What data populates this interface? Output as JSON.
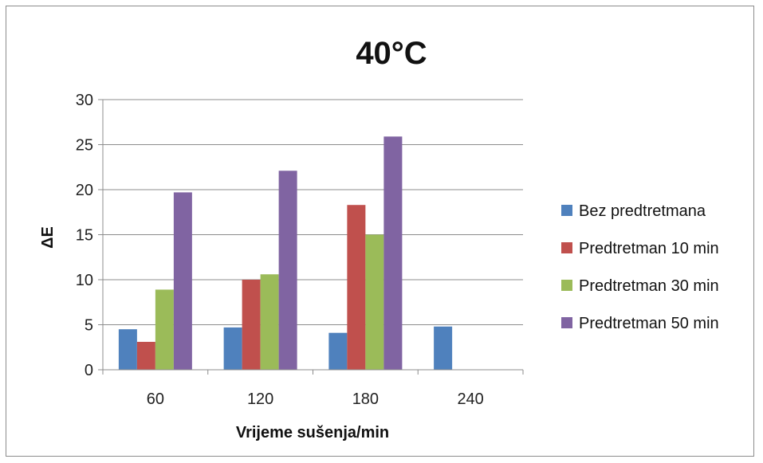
{
  "chart_data": {
    "type": "bar",
    "title": "40°C",
    "xlabel": "Vrijeme sušenja/min",
    "ylabel": "ΔE",
    "categories": [
      "60",
      "120",
      "180",
      "240"
    ],
    "ylim": [
      0,
      30
    ],
    "yticks": [
      "0",
      "5",
      "10",
      "15",
      "20",
      "25",
      "30"
    ],
    "grid": true,
    "legend_position": "right",
    "series": [
      {
        "name": "Bez predtretmana",
        "color": "#4f81bd",
        "values": [
          4.5,
          4.7,
          4.1,
          4.8
        ]
      },
      {
        "name": "Predtretman 10 min",
        "color": "#c0504d",
        "values": [
          3.1,
          10.0,
          18.3,
          null
        ]
      },
      {
        "name": "Predtretman 30 min",
        "color": "#9bbb59",
        "values": [
          8.9,
          10.6,
          15.0,
          null
        ]
      },
      {
        "name": "Predtretman 50 min",
        "color": "#8064a2",
        "values": [
          19.7,
          22.1,
          25.9,
          null
        ]
      }
    ]
  }
}
